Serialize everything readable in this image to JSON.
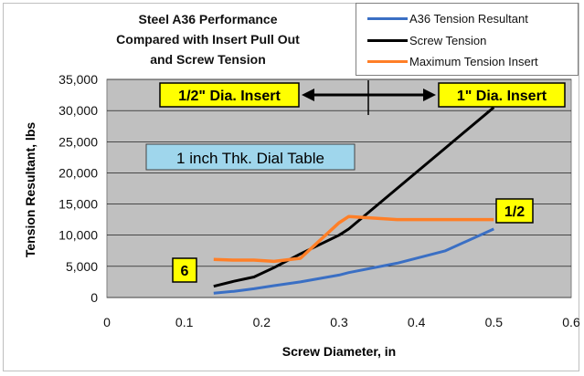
{
  "chart_data": {
    "type": "line",
    "title": "Steel A36 Performance\nCompared with Insert Pull Out\nand Screw Tension",
    "xlabel": "Screw Diameter, in",
    "ylabel": "Tension Resultant, lbs",
    "xlim": [
      0,
      0.6
    ],
    "ylim": [
      0,
      35000
    ],
    "xticks": [
      "0",
      "0.1",
      "0.2",
      "0.3",
      "0.4",
      "0.5",
      "0.6"
    ],
    "yticks": [
      "0",
      "5,000",
      "10,000",
      "15,000",
      "20,000",
      "25,000",
      "30,000",
      "35,000"
    ],
    "grid": "horizontal",
    "legend_position": "top-right",
    "series": [
      {
        "name": "A36 Tension Resultant",
        "color": "#3a6fc4",
        "x": [
          0.138,
          0.164,
          0.19,
          0.216,
          0.25,
          0.3,
          0.3125,
          0.375,
          0.4375,
          0.5
        ],
        "y": [
          700,
          1000,
          1400,
          1900,
          2500,
          3600,
          4000,
          5500,
          7500,
          11000
        ]
      },
      {
        "name": "Screw Tension",
        "color": "#000000",
        "x": [
          0.138,
          0.164,
          0.19,
          0.216,
          0.25,
          0.3,
          0.3125,
          0.375,
          0.4375,
          0.5
        ],
        "y": [
          1800,
          2600,
          3300,
          4800,
          7000,
          10000,
          11000,
          17500,
          24000,
          30500
        ]
      },
      {
        "name": "Maximum Tension Insert",
        "color": "#ff7f27",
        "x": [
          0.138,
          0.164,
          0.19,
          0.216,
          0.25,
          0.3,
          0.3125,
          0.375,
          0.4375,
          0.5
        ],
        "y": [
          6100,
          6000,
          6000,
          5800,
          6300,
          12000,
          13000,
          12500,
          12500,
          12500
        ]
      }
    ],
    "annotations": [
      {
        "text": "1/2\" Dia. Insert",
        "style": "yellow-box"
      },
      {
        "text": "1\" Dia. Insert",
        "style": "yellow-box"
      },
      {
        "text": "1 inch Thk. Dial Table",
        "style": "blue-box"
      },
      {
        "text": "6",
        "style": "yellow-box"
      },
      {
        "text": "1/2",
        "style": "yellow-box"
      }
    ]
  }
}
